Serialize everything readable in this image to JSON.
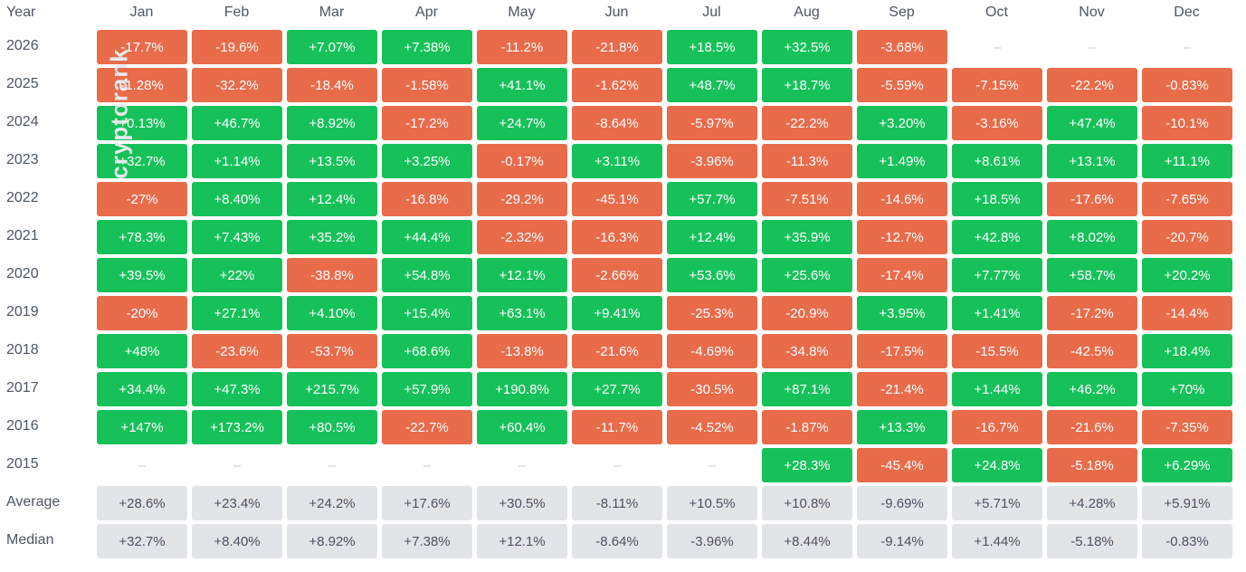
{
  "watermark": "cryptorank",
  "colors": {
    "positive": "#16c15a",
    "negative": "#e86b4a",
    "stat_bg": "#e2e4e8",
    "empty_text": "#c6c9ce"
  },
  "chart_data": {
    "type": "table",
    "title": "",
    "corner_label": "Year",
    "columns": [
      "Jan",
      "Feb",
      "Mar",
      "Apr",
      "May",
      "Jun",
      "Jul",
      "Aug",
      "Sep",
      "Oct",
      "Nov",
      "Dec"
    ],
    "rows": [
      {
        "label": "2026",
        "kind": "year",
        "cells": [
          "-17.7%",
          "-19.6%",
          "+7.07%",
          "+7.38%",
          "-11.2%",
          "-21.8%",
          "+18.5%",
          "+32.5%",
          "-3.68%",
          "–",
          "–",
          "–"
        ]
      },
      {
        "label": "2025",
        "kind": "year",
        "cells": [
          "-1.28%",
          "-32.2%",
          "-18.4%",
          "-1.58%",
          "+41.1%",
          "-1.62%",
          "+48.7%",
          "+18.7%",
          "-5.59%",
          "-7.15%",
          "-22.2%",
          "-0.83%"
        ]
      },
      {
        "label": "2024",
        "kind": "year",
        "cells": [
          "+0.13%",
          "+46.7%",
          "+8.92%",
          "-17.2%",
          "+24.7%",
          "-8.64%",
          "-5.97%",
          "-22.2%",
          "+3.20%",
          "-3.16%",
          "+47.4%",
          "-10.1%"
        ]
      },
      {
        "label": "2023",
        "kind": "year",
        "cells": [
          "+32.7%",
          "+1.14%",
          "+13.5%",
          "+3.25%",
          "-0.17%",
          "+3.11%",
          "-3.96%",
          "-11.3%",
          "+1.49%",
          "+8.61%",
          "+13.1%",
          "+11.1%"
        ]
      },
      {
        "label": "2022",
        "kind": "year",
        "cells": [
          "-27%",
          "+8.40%",
          "+12.4%",
          "-16.8%",
          "-29.2%",
          "-45.1%",
          "+57.7%",
          "-7.51%",
          "-14.6%",
          "+18.5%",
          "-17.6%",
          "-7.65%"
        ]
      },
      {
        "label": "2021",
        "kind": "year",
        "cells": [
          "+78.3%",
          "+7.43%",
          "+35.2%",
          "+44.4%",
          "-2.32%",
          "-16.3%",
          "+12.4%",
          "+35.9%",
          "-12.7%",
          "+42.8%",
          "+8.02%",
          "-20.7%"
        ]
      },
      {
        "label": "2020",
        "kind": "year",
        "cells": [
          "+39.5%",
          "+22%",
          "-38.8%",
          "+54.8%",
          "+12.1%",
          "-2.66%",
          "+53.6%",
          "+25.6%",
          "-17.4%",
          "+7.77%",
          "+58.7%",
          "+20.2%"
        ]
      },
      {
        "label": "2019",
        "kind": "year",
        "cells": [
          "-20%",
          "+27.1%",
          "+4.10%",
          "+15.4%",
          "+63.1%",
          "+9.41%",
          "-25.3%",
          "-20.9%",
          "+3.95%",
          "+1.41%",
          "-17.2%",
          "-14.4%"
        ]
      },
      {
        "label": "2018",
        "kind": "year",
        "cells": [
          "+48%",
          "-23.6%",
          "-53.7%",
          "+68.6%",
          "-13.8%",
          "-21.6%",
          "-4.69%",
          "-34.8%",
          "-17.5%",
          "-15.5%",
          "-42.5%",
          "+18.4%"
        ]
      },
      {
        "label": "2017",
        "kind": "year",
        "cells": [
          "+34.4%",
          "+47.3%",
          "+215.7%",
          "+57.9%",
          "+190.8%",
          "+27.7%",
          "-30.5%",
          "+87.1%",
          "-21.4%",
          "+1.44%",
          "+46.2%",
          "+70%"
        ]
      },
      {
        "label": "2016",
        "kind": "year",
        "cells": [
          "+147%",
          "+173.2%",
          "+80.5%",
          "-22.7%",
          "+60.4%",
          "-11.7%",
          "-4.52%",
          "-1.87%",
          "+13.3%",
          "-16.7%",
          "-21.6%",
          "-7.35%"
        ]
      },
      {
        "label": "2015",
        "kind": "year",
        "cells": [
          "–",
          "–",
          "–",
          "–",
          "–",
          "–",
          "–",
          "+28.3%",
          "-45.4%",
          "+24.8%",
          "-5.18%",
          "+6.29%"
        ]
      },
      {
        "label": "Average",
        "kind": "stat",
        "cells": [
          "+28.6%",
          "+23.4%",
          "+24.2%",
          "+17.6%",
          "+30.5%",
          "-8.11%",
          "+10.5%",
          "+10.8%",
          "-9.69%",
          "+5.71%",
          "+4.28%",
          "+5.91%"
        ]
      },
      {
        "label": "Median",
        "kind": "stat",
        "cells": [
          "+32.7%",
          "+8.40%",
          "+8.92%",
          "+7.38%",
          "+12.1%",
          "-8.64%",
          "-3.96%",
          "+8.44%",
          "-9.14%",
          "+1.44%",
          "-5.18%",
          "-0.83%"
        ]
      }
    ]
  }
}
